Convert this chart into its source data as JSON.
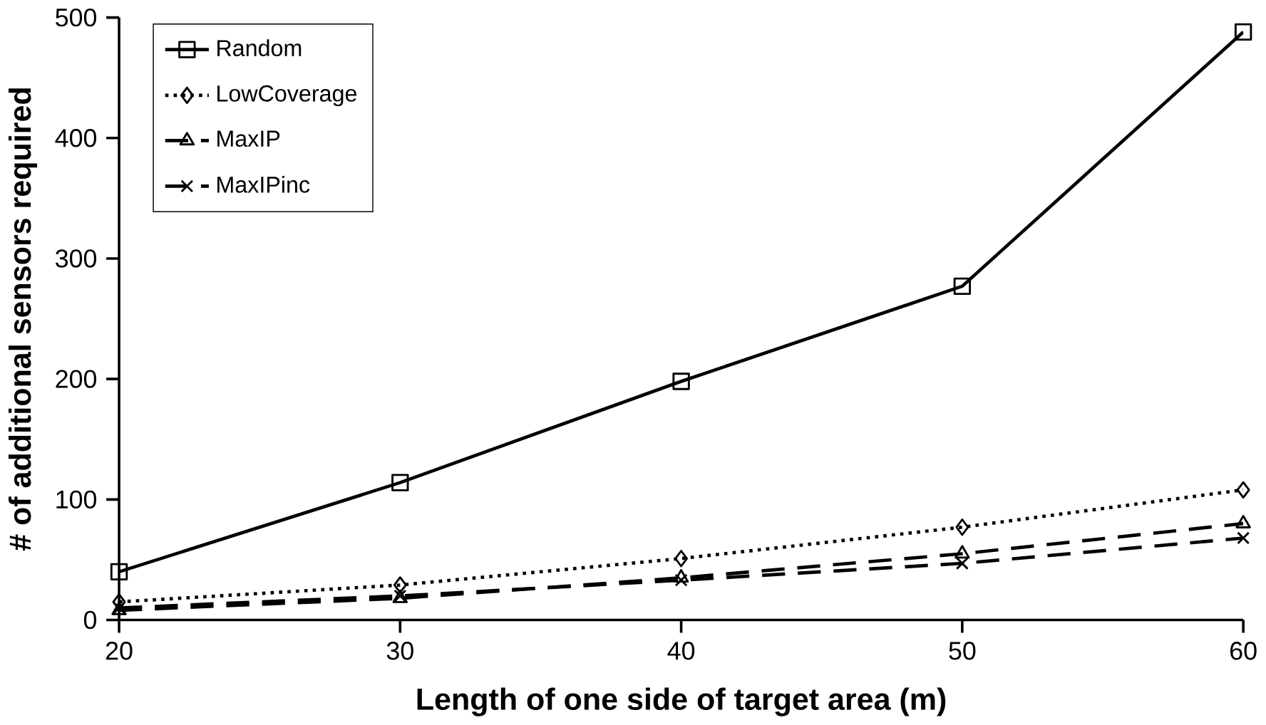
{
  "chart_data": {
    "type": "line",
    "xlabel": "Length of one side of target area (m)",
    "ylabel": "# of additional sensors required",
    "x": [
      20,
      30,
      40,
      50,
      60
    ],
    "series": [
      {
        "name": "Random",
        "color": "#000000",
        "values": [
          40,
          114,
          198,
          277,
          488
        ],
        "marker": "square",
        "line_style": "solid"
      },
      {
        "name": "LowCoverage",
        "color": "#000000",
        "values": [
          15,
          29,
          51,
          77,
          108
        ],
        "marker": "diamond",
        "line_style": "dotted"
      },
      {
        "name": "MaxIP",
        "color": "#000000",
        "values": [
          8,
          18,
          35,
          55,
          80
        ],
        "marker": "triangle",
        "line_style": "dashed"
      },
      {
        "name": "MaxIPinc",
        "color": "#000000",
        "values": [
          10,
          20,
          33,
          47,
          68
        ],
        "marker": "cross",
        "line_style": "dashed"
      }
    ],
    "xlim": [
      20,
      60
    ],
    "xticks": [
      20,
      30,
      40,
      50,
      60
    ],
    "ylim": [
      0,
      500
    ],
    "yticks": [
      0,
      100,
      200,
      300,
      400,
      500
    ],
    "legend": "top left",
    "grid": false
  }
}
